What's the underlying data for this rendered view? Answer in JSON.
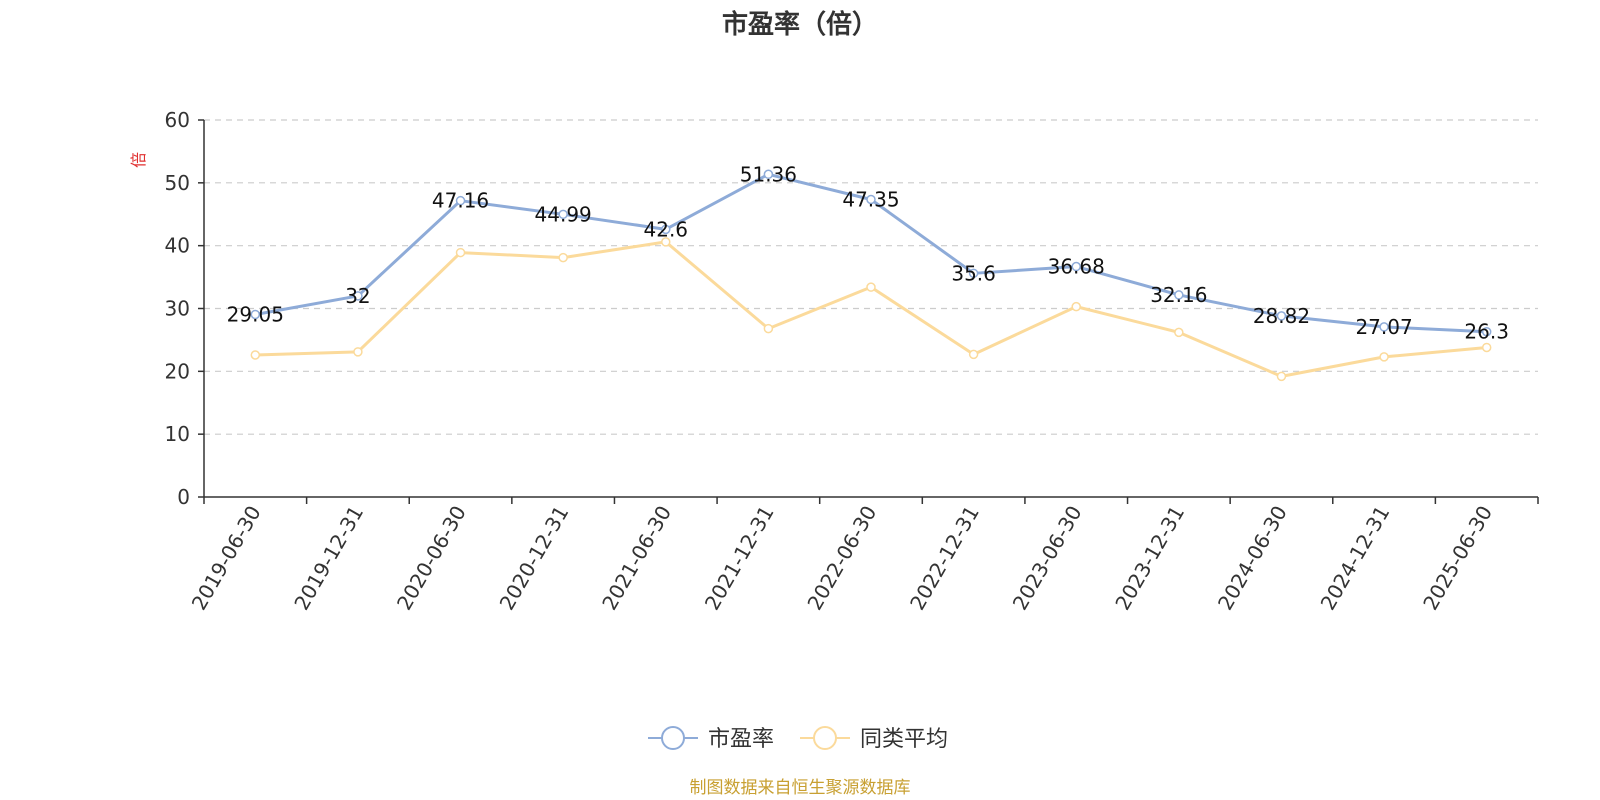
{
  "chart_data": {
    "type": "line",
    "title": "市盈率（倍）",
    "ylabel": "倍",
    "ylim": [
      0,
      60
    ],
    "yticks": [
      0,
      10,
      20,
      30,
      40,
      50,
      60
    ],
    "grid": true,
    "legend_position": "bottom-center",
    "categories": [
      "2019-06-30",
      "2019-12-31",
      "2020-06-30",
      "2020-12-31",
      "2021-06-30",
      "2021-12-31",
      "2022-06-30",
      "2022-12-31",
      "2023-06-30",
      "2023-12-31",
      "2024-06-30",
      "2024-12-31",
      "2025-06-30"
    ],
    "series": [
      {
        "name": "市盈率",
        "color": "#8eabd8",
        "values": [
          29.05,
          32,
          47.16,
          44.99,
          42.6,
          51.36,
          47.35,
          35.6,
          36.68,
          32.16,
          28.82,
          27.07,
          26.3
        ],
        "labels": [
          "29.05",
          "32",
          "47.16",
          "44.99",
          "42.6",
          "51.36",
          "47.35",
          "35.6",
          "36.68",
          "32.16",
          "28.82",
          "27.07",
          "26.3"
        ]
      },
      {
        "name": "同类平均",
        "color": "#fbda9b",
        "values": [
          22.6,
          23.1,
          38.9,
          38.1,
          40.6,
          26.8,
          33.4,
          22.7,
          30.3,
          26.2,
          19.2,
          22.3,
          23.8
        ]
      }
    ]
  },
  "colors": {
    "ylabel": "#e03030",
    "source": "#c8a032"
  },
  "source_text": "制图数据来自恒生聚源数据库"
}
